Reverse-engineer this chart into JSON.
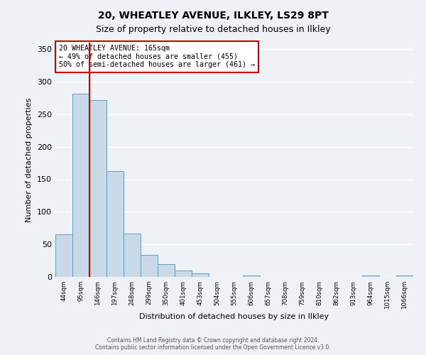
{
  "title": "20, WHEATLEY AVENUE, ILKLEY, LS29 8PT",
  "subtitle": "Size of property relative to detached houses in Ilkley",
  "xlabel": "Distribution of detached houses by size in Ilkley",
  "ylabel": "Number of detached properties",
  "bin_labels": [
    "44sqm",
    "95sqm",
    "146sqm",
    "197sqm",
    "248sqm",
    "299sqm",
    "350sqm",
    "401sqm",
    "453sqm",
    "504sqm",
    "555sqm",
    "606sqm",
    "657sqm",
    "708sqm",
    "759sqm",
    "810sqm",
    "862sqm",
    "913sqm",
    "964sqm",
    "1015sqm",
    "1066sqm"
  ],
  "bar_values": [
    65,
    282,
    272,
    163,
    67,
    34,
    20,
    10,
    5,
    0,
    0,
    2,
    0,
    0,
    0,
    0,
    0,
    0,
    2,
    0,
    2
  ],
  "bar_color": "#c9d9e8",
  "bar_edge_color": "#6699bb",
  "vline_x_index": 2,
  "vline_color": "#cc0000",
  "annotation_title": "20 WHEATLEY AVENUE: 165sqm",
  "annotation_line1": "← 49% of detached houses are smaller (455)",
  "annotation_line2": "50% of semi-detached houses are larger (461) →",
  "annotation_box_color": "#cc0000",
  "ylim": [
    0,
    360
  ],
  "yticks": [
    0,
    50,
    100,
    150,
    200,
    250,
    300,
    350
  ],
  "footer1": "Contains HM Land Registry data © Crown copyright and database right 2024.",
  "footer2": "Contains public sector information licensed under the Open Government Licence v3.0.",
  "background_color": "#eef2f7",
  "grid_color": "#ffffff",
  "title_fontsize": 10,
  "subtitle_fontsize": 9
}
